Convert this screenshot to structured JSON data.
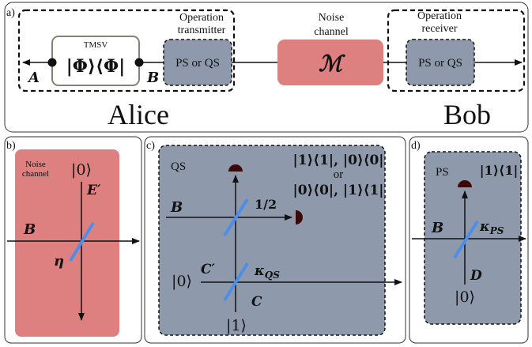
{
  "colors": {
    "noise": "#e07b7b",
    "noise_bg": "#de7f80",
    "gray_box": "#8e9aab",
    "beam_splitter": "#4f8ee6",
    "detector": "#3a0a0a",
    "tmsv_border": "#8a7f77"
  },
  "panel_a": {
    "tag": "a)",
    "tmsv_label": "TMSV",
    "tmsv_state": "|Φ⟩⟨Φ|",
    "mode_a": "A",
    "mode_b": "B",
    "transmitter_title_1": "Operation",
    "transmitter_title_2": "transmitter",
    "transmitter_box": "PS or QS",
    "noise_title_1": "Noise",
    "noise_title_2": "channel",
    "noise_symbol": "ℳ",
    "receiver_title_1": "Operation",
    "receiver_title_2": "receiver",
    "receiver_box": "PS or QS",
    "alice": "Alice",
    "bob": "Bob"
  },
  "panel_b": {
    "tag": "b)",
    "title_1": "Noise",
    "title_2": "channel",
    "vacuum": "|0⟩",
    "env_mode": "E′",
    "mode_b": "B",
    "eta": "η"
  },
  "panel_c": {
    "tag": "c)",
    "title": "QS",
    "proj_1": "|1⟩⟨1|, |0⟩⟨0|",
    "proj_or": "or",
    "proj_2": "|0⟩⟨0|, |1⟩⟨1|",
    "mode_b": "B",
    "half": "1/2",
    "mode_c_prime": "C′",
    "kappa_qs": "κ",
    "kappa_qs_sub": "QS",
    "vacuum": "|0⟩",
    "mode_c": "C",
    "single_photon": "|1⟩"
  },
  "panel_d": {
    "tag": "d)",
    "title": "PS",
    "proj": "|1⟩⟨1|",
    "mode_b": "B",
    "kappa_ps": "κ",
    "kappa_ps_sub": "PS",
    "mode_d": "D",
    "vacuum": "|0⟩"
  }
}
